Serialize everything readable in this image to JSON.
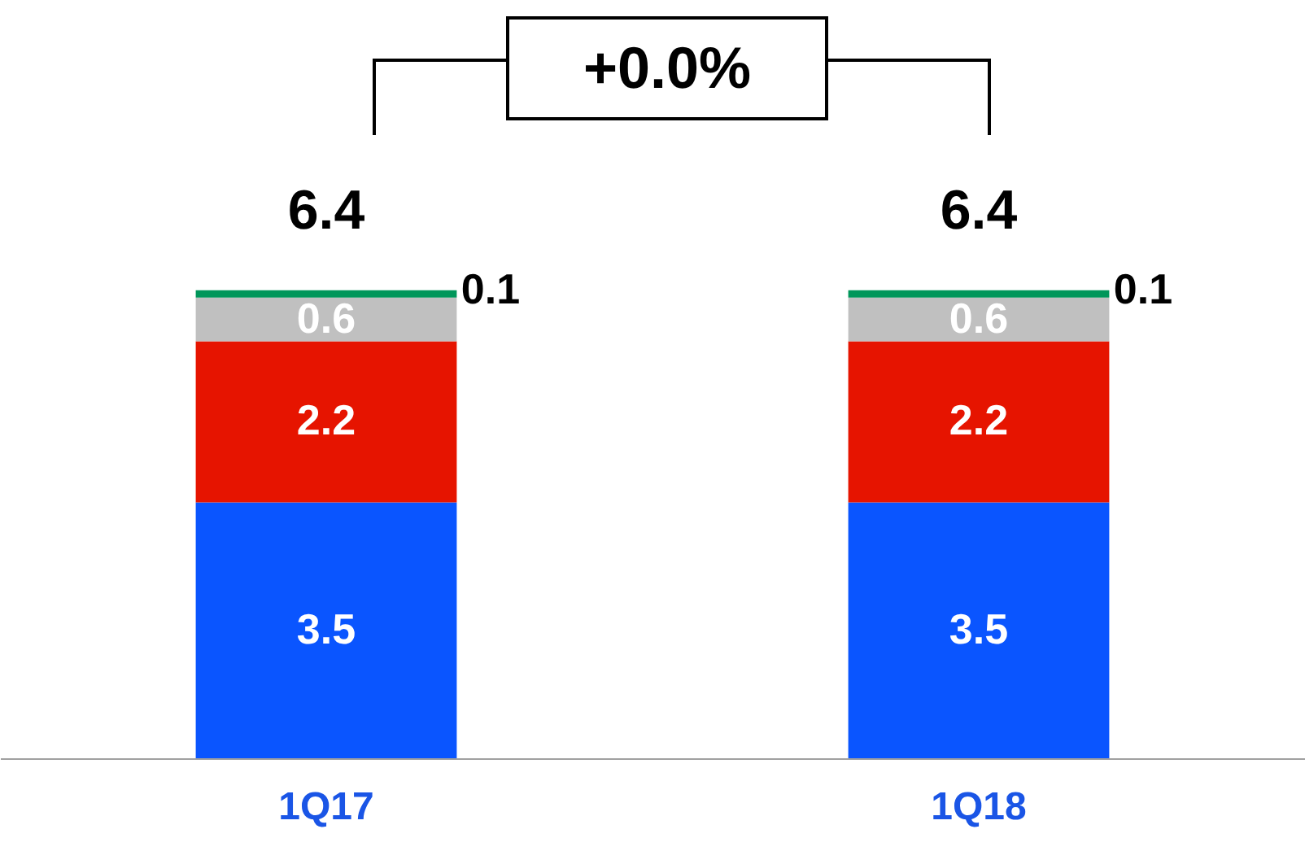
{
  "chart_data": {
    "type": "bar",
    "stacked": true,
    "categories": [
      "1Q17",
      "1Q18"
    ],
    "series": [
      {
        "color": "#0a55ff",
        "values": [
          3.5,
          3.5
        ]
      },
      {
        "color": "#e61400",
        "values": [
          2.2,
          2.2
        ]
      },
      {
        "color": "#c0c0c0",
        "values": [
          0.6,
          0.6
        ]
      },
      {
        "color": "#00965a",
        "values": [
          0.1,
          0.1
        ]
      }
    ],
    "data_labels": true,
    "totals": [
      "6.4",
      "6.4"
    ],
    "annotations": [
      "+0.0%"
    ]
  }
}
